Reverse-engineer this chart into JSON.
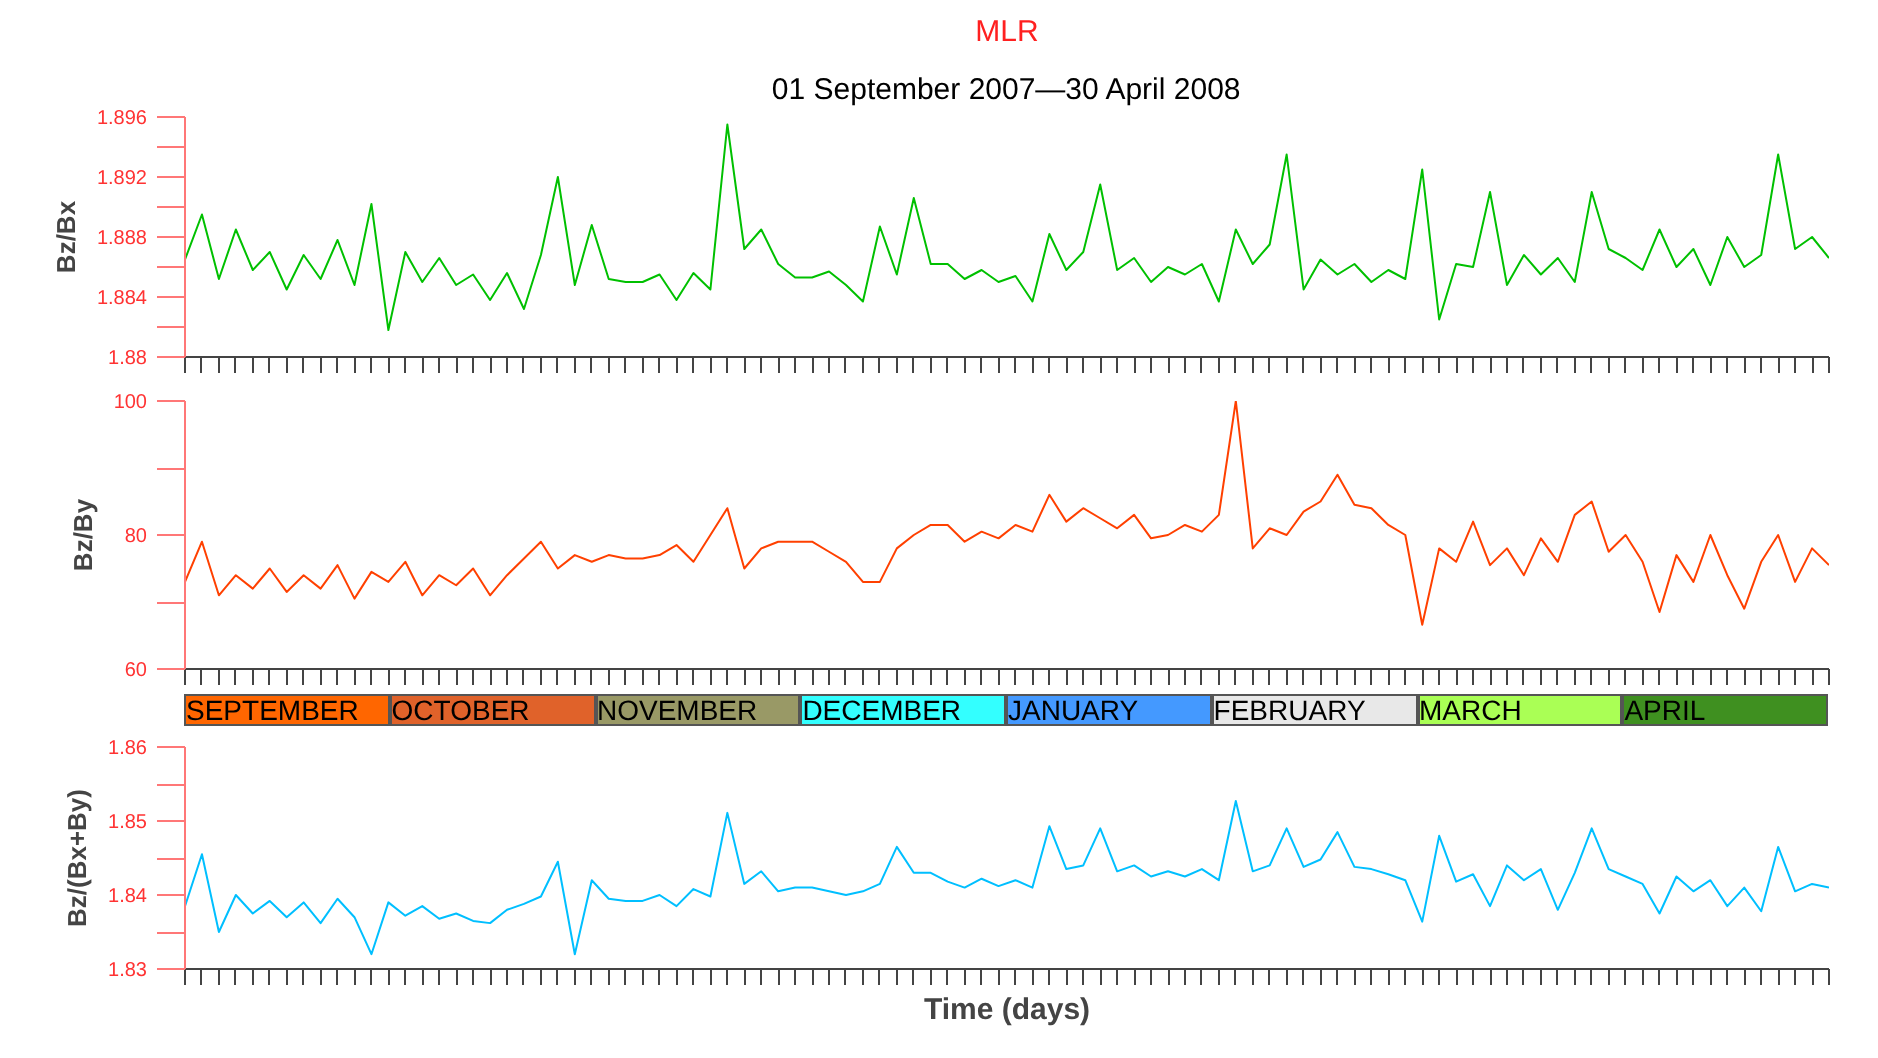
{
  "chart_data": [
    {
      "type": "line",
      "title": "MLR",
      "subtitle": "01 September 2007—30 April 2008",
      "ylabel": "Bz/Bx",
      "tick_labels": "y",
      "grid": false,
      "categories": [
        null,
        null,
        null,
        null,
        null,
        null,
        null,
        null,
        null,
        null,
        null,
        null,
        null,
        null,
        null,
        null,
        null,
        null,
        null,
        null,
        null,
        null,
        null,
        null,
        null,
        null,
        null,
        null,
        null,
        null,
        null,
        null,
        null,
        null,
        null,
        null,
        null,
        null,
        null,
        null,
        null,
        null,
        null,
        null,
        null,
        null,
        null,
        null,
        null,
        null,
        null,
        null,
        null,
        null,
        null,
        null,
        null,
        null,
        null,
        null,
        null,
        null,
        null,
        null,
        null,
        null,
        null,
        null,
        null,
        null,
        null,
        null,
        null,
        null,
        null,
        null,
        null,
        null,
        null,
        null,
        null,
        null,
        null,
        null,
        null,
        null,
        null,
        null,
        null,
        null,
        null,
        null,
        null,
        null,
        null,
        null,
        null,
        null
      ],
      "ylim": [
        1.88,
        1.896
      ],
      "yticks": [
        1.88,
        {
          "value": 1.882,
          "label": null
        },
        1.884,
        {
          "value": 1.886,
          "label": null
        },
        1.888,
        {
          "value": 1.89,
          "label": null
        },
        1.892,
        {
          "value": 1.894,
          "label": null
        },
        1.896
      ],
      "series": [
        {
          "color": "#00c000",
          "values": [
            1.8865,
            1.8895,
            1.8852,
            1.8885,
            1.8858,
            1.887,
            1.8845,
            1.8868,
            1.8852,
            1.8878,
            1.8848,
            1.8902,
            1.8818,
            1.887,
            1.885,
            1.8866,
            1.8848,
            1.8855,
            1.8838,
            1.8856,
            1.8832,
            1.8868,
            1.892,
            1.8848,
            1.8888,
            1.8852,
            1.885,
            1.885,
            1.8855,
            1.8838,
            1.8856,
            1.8845,
            1.8955,
            1.8872,
            1.8885,
            1.8862,
            1.8853,
            1.8853,
            1.8857,
            1.8848,
            1.8837,
            1.8887,
            1.8855,
            1.8906,
            1.8862,
            1.8862,
            1.8852,
            1.8858,
            1.885,
            1.8854,
            1.8837,
            1.8882,
            1.8858,
            1.887,
            1.8915,
            1.8858,
            1.8866,
            1.885,
            1.886,
            1.8855,
            1.8862,
            1.8837,
            1.8885,
            1.8862,
            1.8875,
            1.8935,
            1.8845,
            1.8865,
            1.8855,
            1.8862,
            1.885,
            1.8858,
            1.8852,
            1.8925,
            1.8825,
            1.8862,
            1.886,
            1.891,
            1.8848,
            1.8868,
            1.8855,
            1.8866,
            1.885,
            1.891,
            1.8872,
            1.8866,
            1.8858,
            1.8885,
            1.886,
            1.8872,
            1.8848,
            1.888,
            1.886,
            1.8868,
            1.8935,
            1.8872,
            1.888,
            1.8866
          ]
        }
      ]
    },
    {
      "type": "line",
      "ylabel": "Bz/By",
      "tick_labels": "y",
      "grid": false,
      "categories": [
        null,
        null,
        null,
        null,
        null,
        null,
        null,
        null,
        null,
        null,
        null,
        null,
        null,
        null,
        null,
        null,
        null,
        null,
        null,
        null,
        null,
        null,
        null,
        null,
        null,
        null,
        null,
        null,
        null,
        null,
        null,
        null,
        null,
        null,
        null,
        null,
        null,
        null,
        null,
        null,
        null,
        null,
        null,
        null,
        null,
        null,
        null,
        null,
        null,
        null,
        null,
        null,
        null,
        null,
        null,
        null,
        null,
        null,
        null,
        null,
        null,
        null,
        null,
        null,
        null,
        null,
        null,
        null,
        null,
        null,
        null,
        null,
        null,
        null,
        null,
        null,
        null,
        null,
        null,
        null,
        null,
        null,
        null,
        null,
        null,
        null,
        null,
        null,
        null,
        null,
        null,
        null,
        null,
        null,
        null,
        null,
        null,
        null
      ],
      "ylim": [
        60,
        100
      ],
      "yticks": [
        60,
        {
          "value": 70,
          "label": null
        },
        80,
        {
          "value": 90,
          "label": null
        },
        100
      ],
      "series": [
        {
          "color": "#ff4000",
          "values": [
            73,
            79,
            71,
            74,
            72,
            75,
            71.5,
            74,
            72,
            75.5,
            70.5,
            74.5,
            73,
            76,
            71,
            74,
            72.5,
            75,
            71,
            74,
            76.5,
            79,
            75,
            77,
            76,
            77,
            76.5,
            76.5,
            77,
            78.5,
            76,
            80,
            84,
            75,
            78,
            79,
            79,
            79,
            77.5,
            76,
            73,
            73,
            78,
            80,
            81.5,
            81.5,
            79,
            80.5,
            79.5,
            81.5,
            80.5,
            86,
            82,
            84,
            82.5,
            81,
            83,
            79.5,
            80,
            81.5,
            80.5,
            83,
            100,
            78,
            81,
            80,
            83.5,
            85,
            89,
            84.5,
            84,
            81.5,
            80,
            66.6,
            78,
            76,
            82,
            75.5,
            78,
            74,
            79.5,
            76,
            83,
            85,
            77.5,
            80,
            76,
            68.5,
            77,
            73,
            80,
            74,
            69,
            76,
            80,
            73,
            78,
            75.5
          ]
        }
      ]
    },
    {
      "type": "line",
      "ylabel": "Bz/(Bx+By)",
      "xlabel": "Time (days)",
      "tick_labels": "y",
      "grid": false,
      "categories": [
        null,
        null,
        null,
        null,
        null,
        null,
        null,
        null,
        null,
        null,
        null,
        null,
        null,
        null,
        null,
        null,
        null,
        null,
        null,
        null,
        null,
        null,
        null,
        null,
        null,
        null,
        null,
        null,
        null,
        null,
        null,
        null,
        null,
        null,
        null,
        null,
        null,
        null,
        null,
        null,
        null,
        null,
        null,
        null,
        null,
        null,
        null,
        null,
        null,
        null,
        null,
        null,
        null,
        null,
        null,
        null,
        null,
        null,
        null,
        null,
        null,
        null,
        null,
        null,
        null,
        null,
        null,
        null,
        null,
        null,
        null,
        null,
        null,
        null,
        null,
        null,
        null,
        null,
        null,
        null,
        null,
        null,
        null,
        null,
        null,
        null,
        null,
        null,
        null,
        null,
        null,
        null,
        null,
        null,
        null,
        null,
        null,
        null
      ],
      "ylim": [
        1.83,
        1.86
      ],
      "yticks": [
        1.83,
        {
          "value": 1.835,
          "label": null
        },
        1.84,
        {
          "value": 1.845,
          "label": null
        },
        1.85,
        {
          "value": 1.855,
          "label": null
        },
        1.86
      ],
      "series": [
        {
          "color": "#00bfff",
          "values": [
            1.8385,
            1.8455,
            1.835,
            1.84,
            1.8375,
            1.8392,
            1.837,
            1.839,
            1.8362,
            1.8395,
            1.837,
            1.832,
            1.839,
            1.8372,
            1.8385,
            1.8368,
            1.8375,
            1.8365,
            1.8362,
            1.838,
            1.8388,
            1.8398,
            1.8445,
            1.832,
            1.842,
            1.8395,
            1.8392,
            1.8392,
            1.84,
            1.8385,
            1.8408,
            1.8398,
            1.8511,
            1.8415,
            1.8432,
            1.8405,
            1.841,
            1.841,
            1.8405,
            1.84,
            1.8405,
            1.8415,
            1.8465,
            1.843,
            1.843,
            1.8418,
            1.841,
            1.8422,
            1.8412,
            1.842,
            1.841,
            1.8493,
            1.8435,
            1.844,
            1.849,
            1.8432,
            1.844,
            1.8425,
            1.8432,
            1.8425,
            1.8435,
            1.842,
            1.8527,
            1.8432,
            1.844,
            1.849,
            1.8438,
            1.8448,
            1.8485,
            1.8438,
            1.8435,
            1.8428,
            1.842,
            1.8364,
            1.848,
            1.8418,
            1.8428,
            1.8385,
            1.844,
            1.842,
            1.8435,
            1.838,
            1.843,
            1.849,
            1.8435,
            1.8425,
            1.8415,
            1.8375,
            1.8425,
            1.8405,
            1.842,
            1.8385,
            1.841,
            1.8378,
            1.8465,
            1.8405,
            1.8415,
            1.841
          ]
        }
      ],
      "annotations": [
        "SEPTEMBER",
        "OCTOBER",
        "NOVEMBER",
        "DECEMBER",
        "JANUARY",
        "FEBRUARY",
        "MARCH",
        "APRIL"
      ]
    }
  ]
}
